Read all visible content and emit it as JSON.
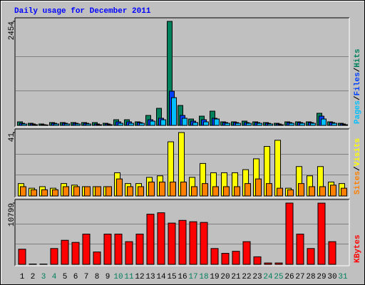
{
  "chart_data": [
    {
      "type": "bar",
      "title": "Daily usage for December 2011",
      "legend_separator": "/",
      "ylim": [
        0,
        2454
      ],
      "yticks": [
        2454
      ],
      "series": [
        {
          "name": "Hits",
          "color": "#00805c",
          "values": [
            84,
            50,
            34,
            67,
            67,
            67,
            67,
            67,
            50,
            134,
            134,
            84,
            235,
            403,
            2454,
            470,
            151,
            218,
            336,
            84,
            84,
            101,
            84,
            67,
            50,
            84,
            84,
            84,
            286,
            84,
            50
          ]
        },
        {
          "name": "Files",
          "color": "#0040ff",
          "values": [
            50,
            34,
            17,
            50,
            50,
            50,
            50,
            34,
            34,
            84,
            84,
            67,
            134,
            168,
            807,
            235,
            101,
            134,
            168,
            67,
            67,
            67,
            67,
            50,
            34,
            67,
            67,
            67,
            218,
            67,
            34
          ]
        },
        {
          "name": "Pages",
          "color": "#00c0ff",
          "values": [
            34,
            17,
            10,
            34,
            34,
            34,
            34,
            17,
            17,
            50,
            50,
            50,
            101,
            134,
            655,
            168,
            67,
            84,
            151,
            50,
            50,
            50,
            50,
            34,
            17,
            50,
            50,
            50,
            151,
            50,
            17
          ]
        }
      ]
    },
    {
      "type": "bar",
      "legend_separator": "/",
      "ylim": [
        0,
        41
      ],
      "yticks": [
        41
      ],
      "series": [
        {
          "name": "Visits",
          "color": "#ffff00",
          "values": [
            8,
            5,
            6,
            5,
            8,
            7,
            6,
            6,
            6,
            15,
            8,
            8,
            12,
            13,
            35,
            41,
            12,
            21,
            15,
            15,
            15,
            17,
            24,
            32,
            36,
            5,
            19,
            13,
            19,
            9,
            8
          ]
        },
        {
          "name": "Sites",
          "color": "#ff8000",
          "values": [
            6,
            4,
            4,
            4,
            6,
            6,
            6,
            6,
            6,
            11,
            6,
            6,
            9,
            9,
            9,
            9,
            6,
            8,
            6,
            6,
            6,
            8,
            11,
            8,
            5,
            4,
            8,
            6,
            6,
            7,
            5
          ]
        }
      ]
    },
    {
      "type": "bar",
      "ylim": [
        0,
        10799
      ],
      "yticks": [
        10799
      ],
      "categories": [
        "1",
        "2",
        "3",
        "4",
        "5",
        "6",
        "7",
        "8",
        "9",
        "10",
        "11",
        "12",
        "13",
        "14",
        "15",
        "16",
        "17",
        "18",
        "19",
        "20",
        "21",
        "22",
        "23",
        "24",
        "25",
        "26",
        "27",
        "28",
        "29",
        "30",
        "31"
      ],
      "category_colors": [
        "#000000",
        "#000000",
        "#00805c",
        "#00805c",
        "#000000",
        "#000000",
        "#000000",
        "#000000",
        "#000000",
        "#00805c",
        "#00805c",
        "#000000",
        "#000000",
        "#000000",
        "#000000",
        "#000000",
        "#00805c",
        "#00805c",
        "#000000",
        "#000000",
        "#000000",
        "#000000",
        "#000000",
        "#00805c",
        "#00805c",
        "#000000",
        "#000000",
        "#000000",
        "#000000",
        "#000000",
        "#00805c"
      ],
      "series": [
        {
          "name": "KBytes",
          "color": "#ff0000",
          "values": [
            2669,
            60,
            50,
            2790,
            4240,
            3870,
            5330,
            2180,
            5330,
            5330,
            4000,
            5330,
            8840,
            9090,
            7270,
            7750,
            7510,
            7390,
            2790,
            1940,
            2300,
            4000,
            1330,
            240,
            240,
            10799,
            5330,
            2790,
            10790,
            4000,
            0
          ]
        }
      ]
    }
  ]
}
